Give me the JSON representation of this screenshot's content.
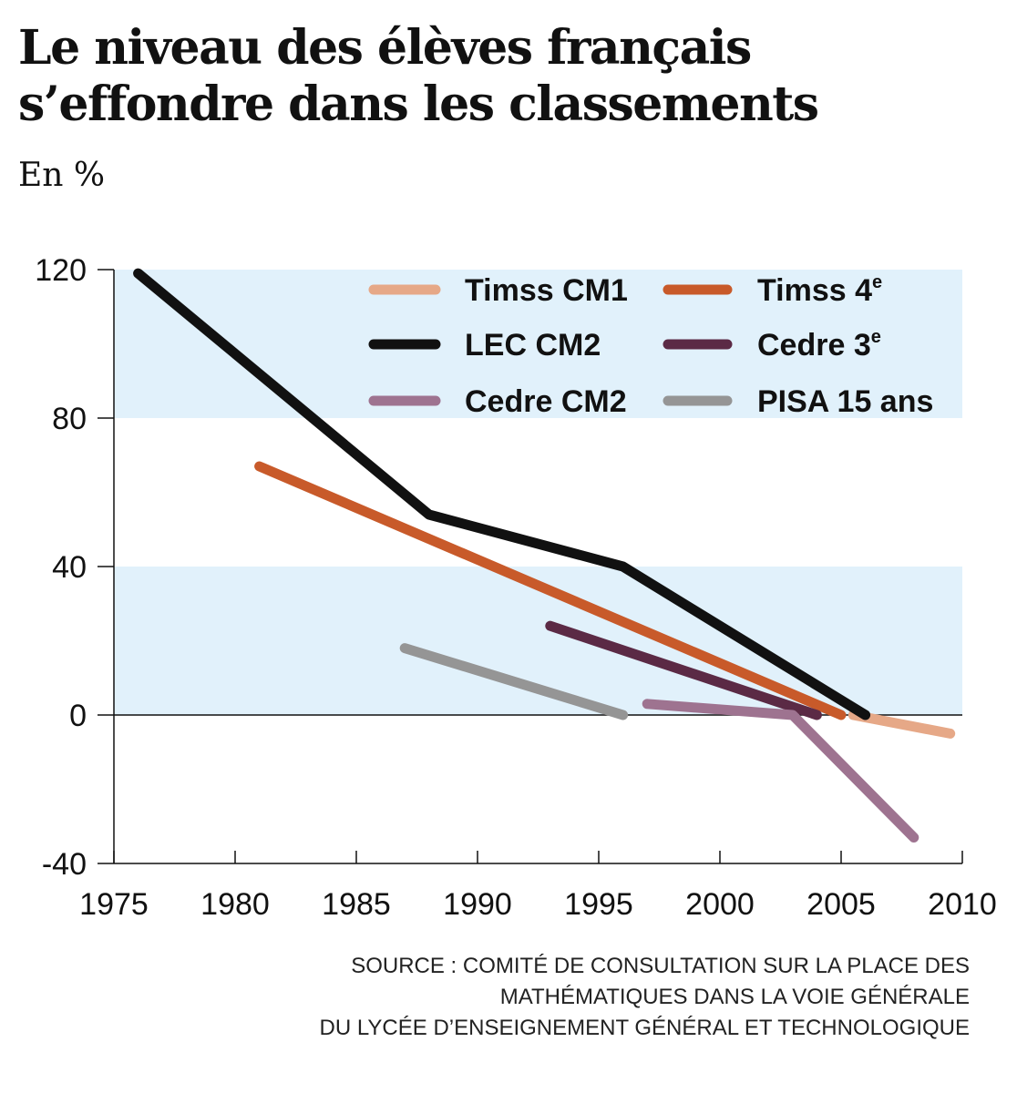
{
  "title": {
    "line1": "Le niveau des élèves français",
    "line2": "s’effondre dans les classements"
  },
  "subtitle": "En %",
  "chart_data": {
    "type": "line",
    "title": "Le niveau des élèves français s’effondre dans les classements",
    "ylabel": "En %",
    "xlim": [
      1975,
      2010
    ],
    "ylim": [
      -40,
      120
    ],
    "x_ticks": [
      "1975",
      "1980",
      "1985",
      "1990",
      "1995",
      "2000",
      "2005",
      "2010"
    ],
    "y_ticks": [
      "120",
      "80",
      "40",
      "0",
      "-40"
    ],
    "bands": [
      [
        80,
        120
      ],
      [
        0,
        40
      ]
    ],
    "band_color": "#e1f1fb",
    "legend_position": "top-right",
    "series": [
      {
        "name": "Timss CM1",
        "color": "#e6a887",
        "points": [
          [
            2005.5,
            0
          ],
          [
            2009.5,
            -5
          ]
        ]
      },
      {
        "name": "Timss 4",
        "sup": "e",
        "color": "#c85a2a",
        "points": [
          [
            1981,
            67
          ],
          [
            2005,
            0
          ]
        ]
      },
      {
        "name": "LEC CM2",
        "color": "#111111",
        "points": [
          [
            1976,
            119
          ],
          [
            1988,
            54
          ],
          [
            1996,
            40
          ],
          [
            2006,
            0
          ]
        ]
      },
      {
        "name": "Cedre 3",
        "sup": "e",
        "color": "#5b2a45",
        "points": [
          [
            1993,
            24
          ],
          [
            2004,
            0
          ]
        ]
      },
      {
        "name": "Cedre CM2",
        "color": "#9e7390",
        "points": [
          [
            1997,
            3
          ],
          [
            2003,
            0
          ],
          [
            2008,
            -33
          ]
        ]
      },
      {
        "name": "PISA 15 ans",
        "color": "#959595",
        "points": [
          [
            1987,
            18
          ],
          [
            1996,
            0
          ]
        ]
      }
    ]
  },
  "source": {
    "line1": "SOURCE : COMITÉ DE CONSULTATION SUR LA PLACE DES",
    "line2": "MATHÉMATIQUES DANS LA VOIE GÉNÉRALE",
    "line3": "DU LYCÉE D’ENSEIGNEMENT GÉNÉRAL ET TECHNOLOGIQUE"
  }
}
